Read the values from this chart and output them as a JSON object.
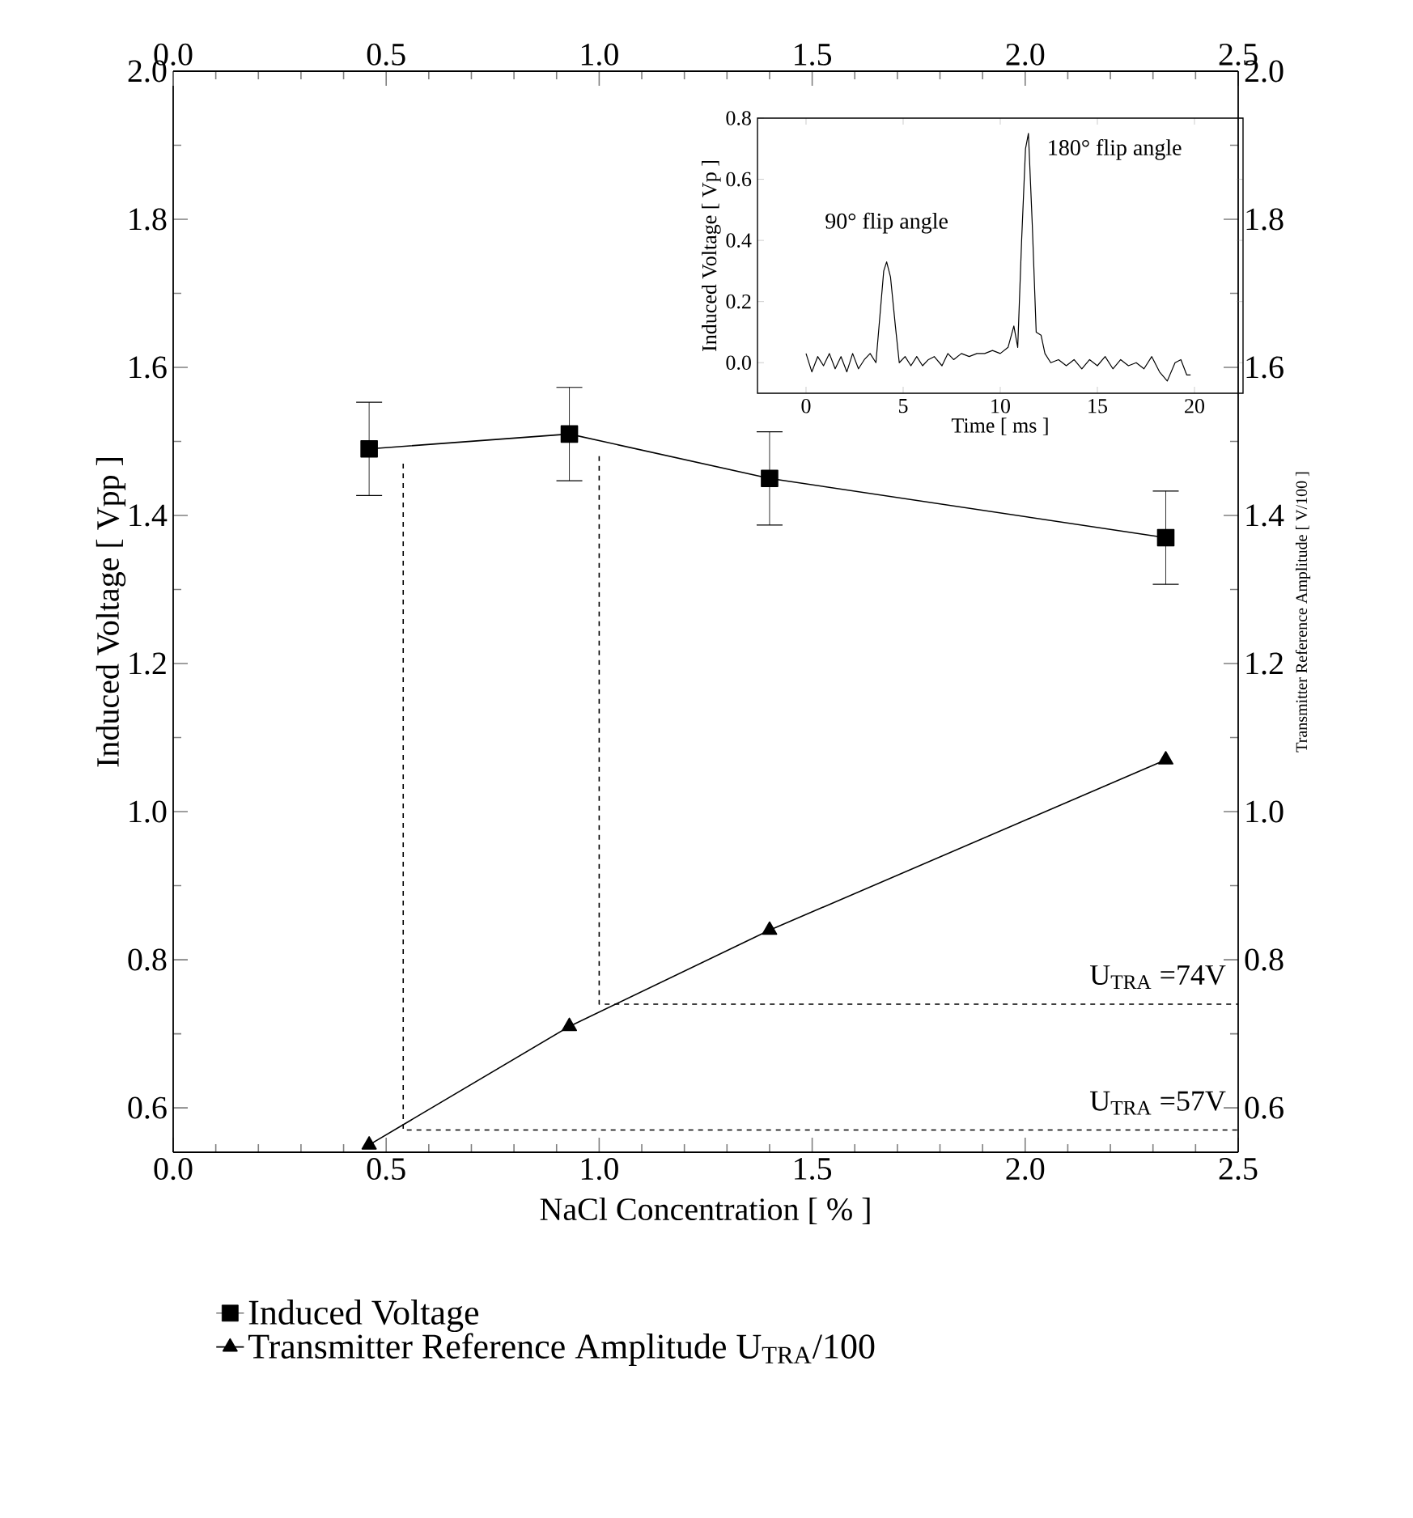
{
  "chart_data": [
    {
      "type": "line",
      "xlabel": "NaCl Concentration [ % ]",
      "ylabel": "Induced Voltage [ Vpp ]",
      "y2label": "Transmitter Reference Amplitude [ V/100 ]",
      "xlim": [
        0,
        2.5
      ],
      "xticks": [
        {
          "value": 0,
          "label": "0.0"
        },
        0.5,
        {
          "value": 1,
          "label": "1.0"
        },
        1.5,
        {
          "value": 2,
          "label": "2.0"
        },
        2.5
      ],
      "x2lim": [
        0,
        2.5
      ],
      "x2ticks": [
        {
          "value": 0,
          "label": "0.0"
        },
        0.5,
        {
          "value": 1,
          "label": "1.0"
        },
        1.5,
        {
          "value": 2,
          "label": "2.0"
        },
        2.5
      ],
      "ylim": [
        0.54,
        2.0
      ],
      "yticks": [
        0.6,
        0.8,
        {
          "value": 1,
          "label": "1.0"
        },
        1.2,
        1.4,
        1.6,
        1.8,
        {
          "value": 2,
          "label": "2.0"
        }
      ],
      "y2lim": [
        0.54,
        2.0
      ],
      "y2ticks": [
        0.6,
        0.8,
        {
          "value": 1,
          "label": "1.0"
        },
        1.2,
        1.4,
        1.6,
        1.8,
        {
          "value": 2,
          "label": "2.0"
        }
      ],
      "legend": "bottom",
      "series": [
        {
          "name": "Induced Voltage",
          "color": "#000000",
          "x": [
            0.46,
            0.93,
            1.4,
            2.33
          ],
          "values": [
            1.49,
            1.51,
            1.45,
            1.37
          ],
          "errors": [
            0.063,
            0.063,
            0.063,
            0.063
          ],
          "marker": "square"
        },
        {
          "name": "Transmitter Reference Amplitude U$_{TRA}$/100",
          "color": "#000000",
          "x": [
            0.46,
            0.93,
            1.4,
            2.33
          ],
          "values": [
            0.55,
            0.71,
            0.84,
            1.07
          ],
          "axis": "y2",
          "marker": "triangle"
        },
        {
          "color": "#000000",
          "x": [
            0.54,
            0.54,
            2.5
          ],
          "values": [
            1.47,
            0.57,
            0.57
          ],
          "line_style": "dashed",
          "marker": "none"
        },
        {
          "color": "#000000",
          "x": [
            1.0,
            1.0,
            2.5
          ],
          "values": [
            1.48,
            0.74,
            0.74
          ],
          "line_style": "dashed",
          "marker": "none"
        }
      ],
      "annotations": [
        {
          "text": "U$_{TRA}$ =74V",
          "x": 2.5,
          "y": 0.74
        },
        {
          "text": "U$_{TRA}$ =57V",
          "x": 2.5,
          "y": 0.57
        }
      ]
    },
    {
      "type": "line",
      "xlabel": "Time [ ms ]",
      "ylabel": "Induced Voltage [ Vp ]",
      "xlim": [
        -2.5,
        22.5
      ],
      "xticks": [
        0,
        5,
        10,
        15,
        20
      ],
      "ylim": [
        -0.1,
        0.8
      ],
      "yticks": [
        {
          "value": 0,
          "label": "0.0"
        },
        0.2,
        0.4,
        0.6,
        0.8
      ],
      "series": [
        {
          "color": "#000000",
          "x": [
            0,
            0.3,
            0.6,
            0.9,
            1.2,
            1.5,
            1.8,
            2.1,
            2.4,
            2.7,
            3.0,
            3.3,
            3.6,
            3.8,
            4.0,
            4.15,
            4.35,
            4.6,
            4.8,
            5.1,
            5.4,
            5.7,
            6.0,
            6.3,
            6.6,
            7.0,
            7.3,
            7.6,
            8.0,
            8.4,
            8.8,
            9.2,
            9.6,
            10.0,
            10.4,
            10.7,
            10.9,
            11.1,
            11.3,
            11.45,
            11.65,
            11.85,
            12.1,
            12.3,
            12.6,
            13.0,
            13.4,
            13.8,
            14.2,
            14.6,
            15.0,
            15.4,
            15.8,
            16.2,
            16.6,
            17.0,
            17.4,
            17.8,
            18.2,
            18.6,
            19.0,
            19.3,
            19.6,
            19.8
          ],
          "values": [
            0.03,
            -0.03,
            0.02,
            -0.01,
            0.03,
            -0.02,
            0.02,
            -0.03,
            0.03,
            -0.02,
            0.01,
            0.03,
            0.0,
            0.15,
            0.3,
            0.33,
            0.28,
            0.12,
            0.0,
            0.02,
            -0.01,
            0.02,
            -0.01,
            0.01,
            0.02,
            -0.01,
            0.03,
            0.01,
            0.03,
            0.02,
            0.03,
            0.03,
            0.04,
            0.03,
            0.05,
            0.12,
            0.05,
            0.4,
            0.7,
            0.75,
            0.45,
            0.1,
            0.09,
            0.03,
            0.0,
            0.01,
            -0.01,
            0.01,
            -0.02,
            0.01,
            -0.01,
            0.02,
            -0.02,
            0.01,
            -0.01,
            0.0,
            -0.02,
            0.02,
            -0.03,
            -0.06,
            0.0,
            0.01,
            -0.04,
            -0.04
          ]
        }
      ],
      "annotations": [
        {
          "text": "90° flip angle",
          "x": 4.15,
          "y": 0.33
        },
        {
          "text": "180° flip angle",
          "x": 11.45,
          "y": 0.75
        }
      ]
    }
  ]
}
